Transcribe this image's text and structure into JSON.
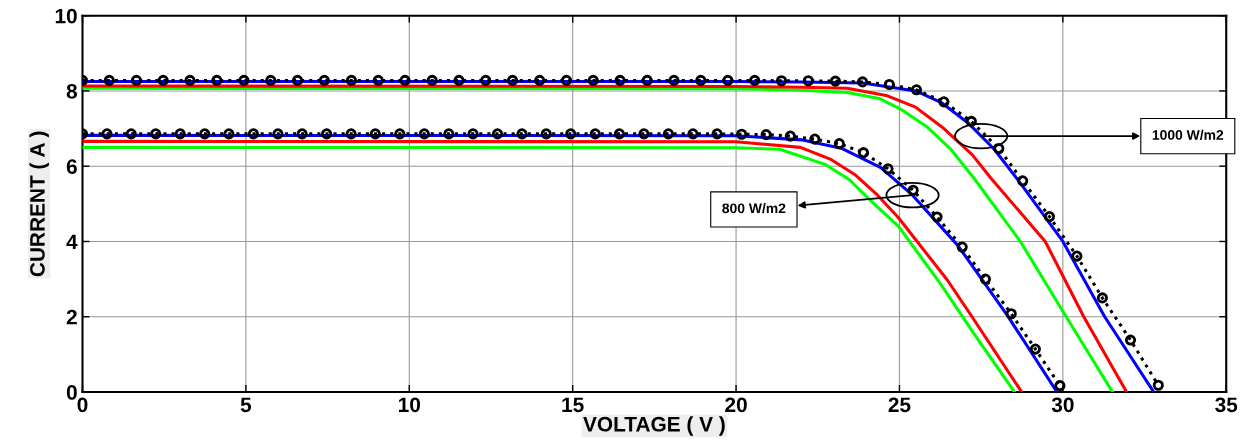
{
  "chart_data": {
    "type": "line",
    "xlabel": "VOLTAGE ( V )",
    "ylabel": "CURRENT ( A )",
    "xlim": [
      0,
      35
    ],
    "ylim": [
      0,
      10
    ],
    "xticks": [
      0,
      5,
      10,
      15,
      20,
      25,
      30,
      35
    ],
    "yticks": [
      0,
      2,
      4,
      6,
      8,
      10
    ],
    "grid": true,
    "annotations": [
      {
        "text": "1000 W/m2",
        "x": 27.5,
        "y": 6.8
      },
      {
        "text": "800 W/m2",
        "x": 25.4,
        "y": 5.23
      }
    ],
    "series": [
      {
        "color": "#00ff00",
        "line_style": "solid",
        "marker": "none",
        "x": [
          0,
          20,
          22,
          23.4,
          24.38,
          25.03,
          25.85,
          26.55,
          27.28,
          28.7,
          30.1,
          31.52
        ],
        "values": [
          8.07,
          8.06,
          8.02,
          7.96,
          7.8,
          7.52,
          7.04,
          6.47,
          5.68,
          4.0,
          2.0,
          0
        ]
      },
      {
        "color": "#ff0000",
        "line_style": "solid",
        "marker": "none",
        "x": [
          0,
          20,
          22,
          23.4,
          24.63,
          25.49,
          26.36,
          27.23,
          27.8,
          29.46,
          30.64,
          31.95
        ],
        "values": [
          8.13,
          8.12,
          8.1,
          8.07,
          7.87,
          7.57,
          7.0,
          6.3,
          5.68,
          4.0,
          2.0,
          0
        ]
      },
      {
        "color": "#0000ff",
        "line_style": "solid",
        "marker": "none",
        "x": [
          0,
          20,
          22,
          23.87,
          25.5,
          26.3,
          27.1,
          27.9,
          28.7,
          30.0,
          31.28,
          32.78
        ],
        "values": [
          8.25,
          8.25,
          8.24,
          8.21,
          8.0,
          7.68,
          7.15,
          6.45,
          5.55,
          4.0,
          2.0,
          0
        ]
      },
      {
        "color": "#000000",
        "line_style": "dotted",
        "marker": "circle",
        "x": [
          0,
          0.82,
          1.65,
          2.47,
          3.29,
          4.11,
          4.94,
          5.76,
          6.58,
          7.4,
          8.23,
          9.05,
          9.87,
          10.7,
          11.52,
          12.34,
          13.16,
          13.99,
          14.81,
          15.63,
          16.45,
          17.28,
          18.1,
          18.92,
          19.75,
          20.57,
          21.39,
          22.21,
          23.04,
          23.87,
          24.69,
          25.52,
          26.36,
          27.2,
          28.04,
          28.77,
          29.59,
          30.43,
          31.21,
          32.07,
          32.92
        ],
        "values": [
          8.28,
          8.28,
          8.28,
          8.28,
          8.28,
          8.28,
          8.28,
          8.28,
          8.28,
          8.28,
          8.28,
          8.28,
          8.28,
          8.28,
          8.28,
          8.28,
          8.28,
          8.28,
          8.28,
          8.28,
          8.28,
          8.28,
          8.28,
          8.28,
          8.28,
          8.28,
          8.27,
          8.27,
          8.26,
          8.24,
          8.17,
          8.03,
          7.71,
          7.19,
          6.47,
          5.61,
          4.66,
          3.61,
          2.5,
          1.38,
          0.18
        ]
      },
      {
        "color": "#00ff00",
        "line_style": "solid",
        "marker": "none",
        "x": [
          0,
          20,
          21.33,
          22.72,
          23.47,
          24.11,
          24.97,
          26.25,
          27.32,
          28.52
        ],
        "values": [
          6.5,
          6.49,
          6.45,
          6.05,
          5.64,
          5.09,
          4.4,
          2.88,
          1.5,
          0
        ]
      },
      {
        "color": "#ff0000",
        "line_style": "solid",
        "marker": "none",
        "x": [
          0,
          20,
          21.97,
          22.88,
          23.63,
          24.33,
          24.97,
          25.72,
          26.47,
          27.22,
          28.74
        ],
        "values": [
          6.66,
          6.65,
          6.5,
          6.19,
          5.78,
          5.23,
          4.63,
          3.8,
          2.97,
          2.0,
          0
        ]
      },
      {
        "color": "#0000ff",
        "line_style": "solid",
        "marker": "none",
        "x": [
          0,
          20,
          22,
          23.25,
          24.43,
          25.4,
          26.79,
          28.29,
          29.82
        ],
        "values": [
          6.82,
          6.81,
          6.7,
          6.47,
          5.96,
          5.23,
          3.89,
          2.05,
          0
        ]
      },
      {
        "color": "#000000",
        "line_style": "dotted",
        "marker": "circle",
        "x": [
          0,
          0.75,
          1.49,
          2.24,
          2.99,
          3.74,
          4.48,
          5.23,
          5.98,
          6.72,
          7.47,
          8.22,
          8.96,
          9.71,
          10.46,
          11.21,
          11.95,
          12.7,
          13.45,
          14.19,
          14.94,
          15.69,
          16.43,
          17.18,
          17.93,
          18.68,
          19.42,
          20.17,
          20.92,
          21.66,
          22.41,
          23.16,
          23.9,
          24.65,
          25.42,
          26.15,
          26.92,
          27.63,
          28.42,
          29.16,
          29.91
        ],
        "values": [
          6.86,
          6.86,
          6.86,
          6.86,
          6.86,
          6.86,
          6.86,
          6.86,
          6.86,
          6.86,
          6.86,
          6.86,
          6.86,
          6.86,
          6.86,
          6.86,
          6.86,
          6.86,
          6.86,
          6.86,
          6.86,
          6.86,
          6.86,
          6.86,
          6.86,
          6.86,
          6.86,
          6.85,
          6.84,
          6.8,
          6.72,
          6.6,
          6.36,
          5.93,
          5.36,
          4.65,
          3.85,
          3.0,
          2.08,
          1.14,
          0.17
        ]
      }
    ]
  }
}
